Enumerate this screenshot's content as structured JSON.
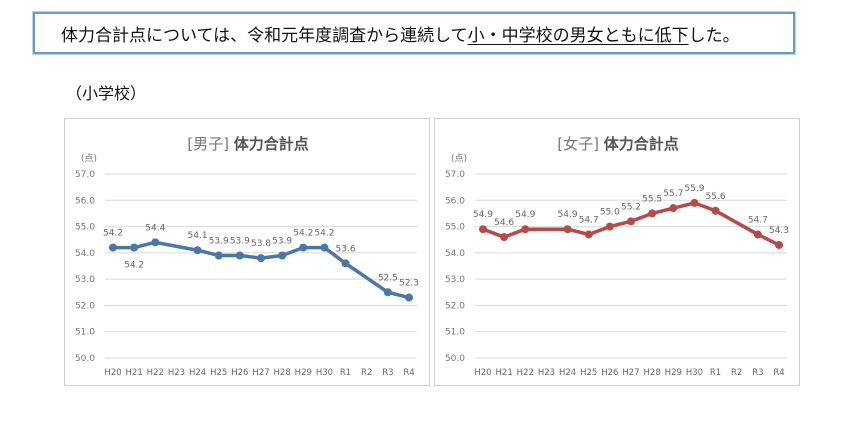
{
  "banner": {
    "text_before": "体力合計点については、令和元年度調査から連続して",
    "text_underlined": "小・中学校の男女ともに低下",
    "text_after": "した。"
  },
  "section_label": "（小学校）",
  "chart_data": [
    {
      "type": "line",
      "title_prefix": "[男子]",
      "title": "体力合計点",
      "ylabel": "(点)",
      "ylim": [
        50,
        57
      ],
      "yticks": [
        "50.0",
        "51.0",
        "52.0",
        "53.0",
        "54.0",
        "55.0",
        "56.0",
        "57.0"
      ],
      "grid": true,
      "color": "#4a76a8",
      "categories": [
        "H20",
        "H21",
        "H22",
        "H23",
        "H24",
        "H25",
        "H26",
        "H27",
        "H28",
        "H29",
        "H30",
        "R1",
        "R2",
        "R3",
        "R4"
      ],
      "values": [
        54.2,
        54.2,
        54.4,
        null,
        54.1,
        53.9,
        53.9,
        53.8,
        53.9,
        54.2,
        54.2,
        53.6,
        null,
        52.5,
        52.3
      ]
    },
    {
      "type": "line",
      "title_prefix": "[女子]",
      "title": "体力合計点",
      "ylabel": "(点)",
      "ylim": [
        50,
        57
      ],
      "yticks": [
        "50.0",
        "51.0",
        "52.0",
        "53.0",
        "54.0",
        "55.0",
        "56.0",
        "57.0"
      ],
      "grid": true,
      "color": "#b64a48",
      "categories": [
        "H20",
        "H21",
        "H22",
        "H23",
        "H24",
        "H25",
        "H26",
        "H27",
        "H28",
        "H29",
        "H30",
        "R1",
        "R2",
        "R3",
        "R4"
      ],
      "values": [
        54.9,
        54.6,
        54.9,
        null,
        54.9,
        54.7,
        55.0,
        55.2,
        55.5,
        55.7,
        55.9,
        55.6,
        null,
        54.7,
        54.3
      ]
    }
  ]
}
